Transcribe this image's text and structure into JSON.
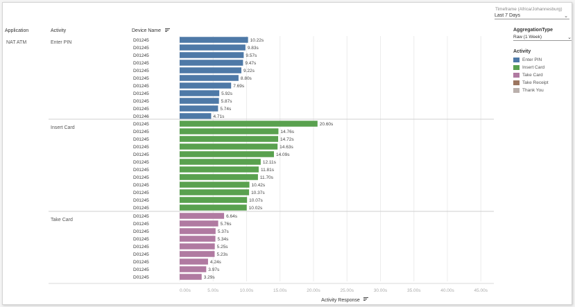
{
  "headers": {
    "application": "Application",
    "activity": "Activity",
    "device_name": "Device Name"
  },
  "timeframe": {
    "title": "Timeframe (Africa/Johannesburg)",
    "value": "Last 7 Days"
  },
  "aggregation": {
    "title": "AggregationType",
    "value": "Raw (1 Week)"
  },
  "colors": {
    "Enter PIN": "#4e79a7",
    "Insert Card": "#59a14f",
    "Take Card": "#b07aa1",
    "Take Receipt": "#9c755f",
    "Thank You": "#bab0ac"
  },
  "chart_data": {
    "type": "bar",
    "orientation": "horizontal",
    "xlabel": "Activity Response",
    "xlim": [
      0,
      45
    ],
    "x_ticks": [
      "0.00s",
      "5.00s",
      "10.00s",
      "15.00s",
      "20.00s",
      "25.00s",
      "30.00s",
      "35.00s",
      "40.00s",
      "45.00s"
    ],
    "application": "NAT ATM",
    "legend": {
      "title": "Activity",
      "placement": "right",
      "entries": [
        "Enter PIN",
        "Insert Card",
        "Take Card",
        "Take Receipt",
        "Thank You"
      ]
    },
    "groups": [
      {
        "activity": "Enter PIN",
        "rows": [
          {
            "device": "D01245",
            "value": 10.22,
            "label": "10.22s"
          },
          {
            "device": "D01245",
            "value": 9.83,
            "label": "9.83s"
          },
          {
            "device": "D01245",
            "value": 9.57,
            "label": "9.57s"
          },
          {
            "device": "D01245",
            "value": 9.47,
            "label": "9.47s"
          },
          {
            "device": "D01245",
            "value": 9.22,
            "label": "9.22s"
          },
          {
            "device": "D01245",
            "value": 8.8,
            "label": "8.80s"
          },
          {
            "device": "D01245",
            "value": 7.69,
            "label": "7.69s"
          },
          {
            "device": "D01245",
            "value": 5.92,
            "label": "5.92s"
          },
          {
            "device": "D01245",
            "value": 5.87,
            "label": "5.87s"
          },
          {
            "device": "D01245",
            "value": 5.74,
            "label": "5.74s"
          },
          {
            "device": "D01246",
            "value": 4.71,
            "label": "4.71s"
          }
        ]
      },
      {
        "activity": "Insert Card",
        "rows": [
          {
            "device": "D01245",
            "value": 20.6,
            "label": "20.60s"
          },
          {
            "device": "D01245",
            "value": 14.76,
            "label": "14.76s"
          },
          {
            "device": "D01245",
            "value": 14.72,
            "label": "14.72s"
          },
          {
            "device": "D01245",
            "value": 14.63,
            "label": "14.63s"
          },
          {
            "device": "D01245",
            "value": 14.09,
            "label": "14.09s"
          },
          {
            "device": "D01245",
            "value": 12.11,
            "label": "12.11s"
          },
          {
            "device": "D01245",
            "value": 11.81,
            "label": "11.81s"
          },
          {
            "device": "D01245",
            "value": 11.7,
            "label": "11.70s"
          },
          {
            "device": "D01245",
            "value": 10.42,
            "label": "10.42s"
          },
          {
            "device": "D01245",
            "value": 10.37,
            "label": "10.37s"
          },
          {
            "device": "D01245",
            "value": 10.07,
            "label": "10.07s"
          },
          {
            "device": "D01245",
            "value": 10.02,
            "label": "10.02s"
          }
        ]
      },
      {
        "activity": "Take Card",
        "rows": [
          {
            "device": "D01245",
            "value": 6.64,
            "label": "6.64s"
          },
          {
            "device": "D01245",
            "value": 5.76,
            "label": "5.76s"
          },
          {
            "device": "D01245",
            "value": 5.37,
            "label": "5.37s"
          },
          {
            "device": "D01245",
            "value": 5.34,
            "label": "5.34s"
          },
          {
            "device": "D01245",
            "value": 5.25,
            "label": "5.25s"
          },
          {
            "device": "D01245",
            "value": 5.23,
            "label": "5.23s"
          },
          {
            "device": "D01245",
            "value": 4.24,
            "label": "4.24s"
          },
          {
            "device": "D01245",
            "value": 3.97,
            "label": "3.97s"
          },
          {
            "device": "D01245",
            "value": 3.29,
            "label": "3.29s"
          }
        ]
      }
    ]
  }
}
